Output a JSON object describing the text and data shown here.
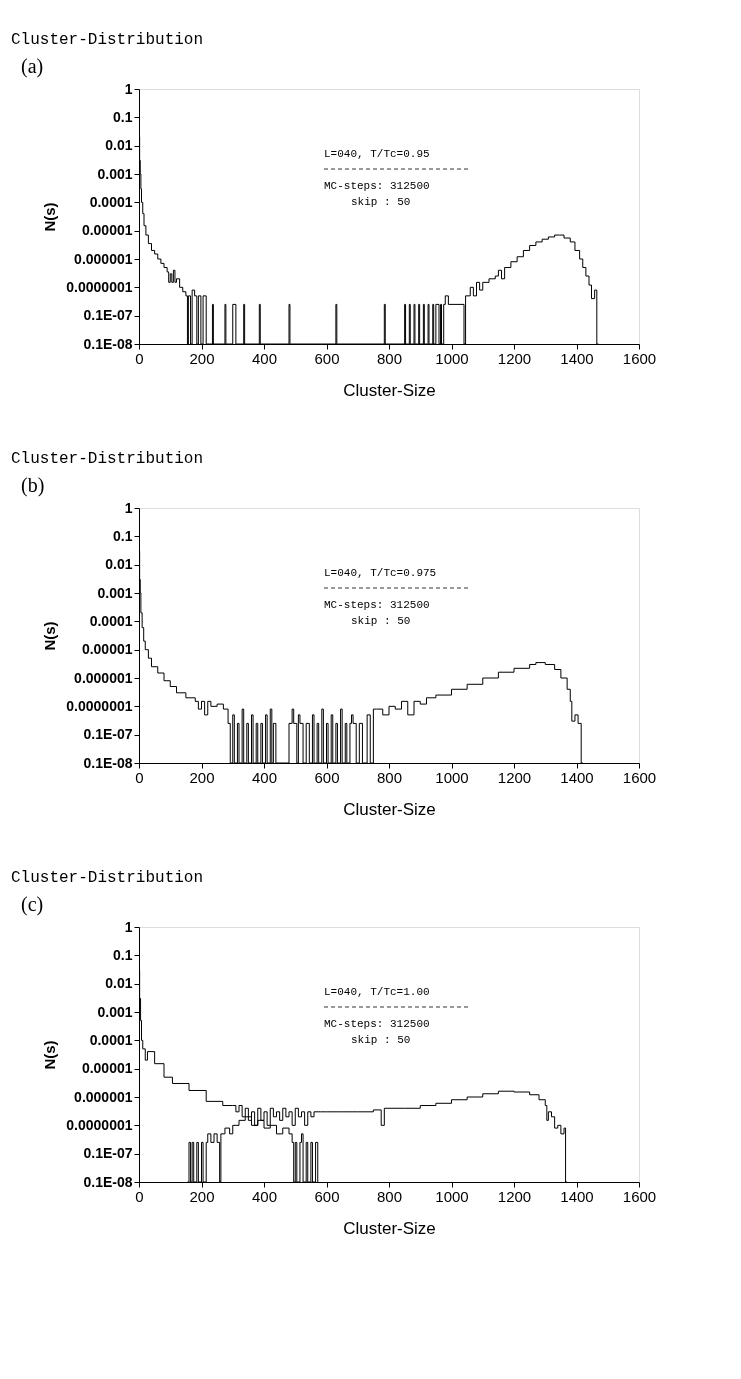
{
  "chart_data": [
    {
      "type": "step",
      "title": "Cluster-Distribution",
      "xlabel": "Cluster-Size",
      "ylabel": "N(s)",
      "log": "y",
      "grid": false,
      "legend": false,
      "annotations": [
        "(a)",
        "L=040,  T/Tc=0.95",
        "MC-steps: 312500",
        "skip : 50"
      ],
      "xlim": [
        0,
        1600
      ],
      "xticks": [
        0,
        200,
        400,
        600,
        800,
        1000,
        1200,
        1400,
        1600
      ],
      "ylim": [
        1e-09,
        1
      ],
      "yticks": [
        {
          "value": 1e-09,
          "label": "0.1E-08"
        },
        {
          "value": 1e-08,
          "label": "0.1E-07"
        },
        {
          "value": 1e-07,
          "label": "0.0000001"
        },
        {
          "value": 1e-06,
          "label": "0.000001"
        },
        {
          "value": 1e-05,
          "label": "0.00001"
        },
        {
          "value": 0.0001,
          "label": "0.0001"
        },
        {
          "value": 0.001,
          "label": "0.001"
        },
        {
          "value": 0.01,
          "label": "0.01"
        },
        {
          "value": 0.1,
          "label": "0.1"
        },
        {
          "value": 1,
          "label": "1"
        }
      ],
      "series": [
        {
          "color": "#000000",
          "x": [
            0,
            2,
            4,
            6,
            8,
            12,
            16,
            22,
            30,
            40,
            50,
            60,
            70,
            80,
            90,
            95,
            100,
            105,
            110,
            115,
            120,
            130,
            140,
            150,
            155,
            158,
            165,
            170,
            178,
            185,
            190,
            198,
            205,
            215,
            235,
            238,
            275,
            278,
            300,
            310,
            335,
            338,
            385,
            388,
            480,
            483,
            630,
            633,
            785,
            788,
            850,
            853,
            865,
            868,
            880,
            883,
            895,
            898,
            910,
            913,
            925,
            928,
            940,
            943,
            950,
            960,
            965,
            968,
            975,
            980,
            990,
            1040,
            1045,
            1060,
            1070,
            1080,
            1090,
            1100,
            1120,
            1140,
            1150,
            1160,
            1170,
            1190,
            1210,
            1230,
            1250,
            1270,
            1290,
            1310,
            1330,
            1345,
            1360,
            1380,
            1395,
            1410,
            1420,
            1430,
            1440,
            1448,
            1458,
            1465,
            1470
          ],
          "values": [
            0.02,
            0.003,
            0.001,
            0.0003,
            0.0001,
            4e-05,
            1.5e-05,
            7e-06,
            3.5e-06,
            2e-06,
            1.5e-06,
            1e-06,
            7e-07,
            5e-07,
            3.5e-07,
            1.5e-07,
            3e-07,
            1.5e-07,
            4e-07,
            1.5e-07,
            2e-07,
            1e-07,
            7e-08,
            5e-08,
            1e-09,
            5e-08,
            1e-09,
            8e-08,
            5e-08,
            1e-09,
            5e-08,
            1e-09,
            5e-08,
            1e-09,
            2.5e-08,
            1e-09,
            2.5e-08,
            1e-09,
            2.5e-08,
            1e-09,
            2.5e-08,
            1e-09,
            2.5e-08,
            1e-09,
            2.5e-08,
            1e-09,
            2.5e-08,
            1e-09,
            2.5e-08,
            1e-09,
            2.5e-08,
            1e-09,
            2.5e-08,
            1e-09,
            2.5e-08,
            1e-09,
            2.5e-08,
            1e-09,
            2.5e-08,
            1e-09,
            2.5e-08,
            1e-09,
            2.5e-08,
            1e-09,
            2.5e-08,
            1e-09,
            2.5e-08,
            1e-09,
            2.5e-08,
            5e-08,
            2.5e-08,
            1e-09,
            5e-08,
            1e-07,
            5e-08,
            1.5e-07,
            8e-08,
            1.5e-07,
            2e-07,
            2.5e-07,
            4e-07,
            2e-07,
            5e-07,
            8e-07,
            1.2e-06,
            2e-06,
            3e-06,
            4e-06,
            5e-06,
            6e-06,
            7e-06,
            7e-06,
            5.5e-06,
            4e-06,
            2e-06,
            1e-06,
            5e-07,
            2.5e-07,
            1.2e-07,
            4e-08,
            8e-08,
            1e-09,
            1e-09
          ]
        }
      ]
    },
    {
      "type": "step",
      "title": "Cluster-Distribution",
      "xlabel": "Cluster-Size",
      "ylabel": "N(s)",
      "log": "y",
      "grid": false,
      "legend": false,
      "annotations": [
        "(b)",
        "L=040,  T/Tc=0.975",
        "MC-steps: 312500",
        "skip : 50"
      ],
      "xlim": [
        0,
        1600
      ],
      "xticks": [
        0,
        200,
        400,
        600,
        800,
        1000,
        1200,
        1400,
        1600
      ],
      "ylim": [
        1e-09,
        1
      ],
      "yticks": [
        {
          "value": 1e-09,
          "label": "0.1E-08"
        },
        {
          "value": 1e-08,
          "label": "0.1E-07"
        },
        {
          "value": 1e-07,
          "label": "0.0000001"
        },
        {
          "value": 1e-06,
          "label": "0.000001"
        },
        {
          "value": 1e-05,
          "label": "0.00001"
        },
        {
          "value": 0.0001,
          "label": "0.0001"
        },
        {
          "value": 0.001,
          "label": "0.001"
        },
        {
          "value": 0.01,
          "label": "0.01"
        },
        {
          "value": 0.1,
          "label": "0.1"
        },
        {
          "value": 1,
          "label": "1"
        }
      ],
      "series": [
        {
          "color": "#000000",
          "x": [
            0,
            2,
            4,
            6,
            10,
            15,
            20,
            30,
            40,
            60,
            80,
            100,
            120,
            150,
            180,
            190,
            200,
            210,
            220,
            230,
            250,
            270,
            285,
            292,
            300,
            305,
            315,
            320,
            330,
            335,
            345,
            350,
            360,
            365,
            375,
            380,
            390,
            395,
            405,
            410,
            420,
            425,
            430,
            438,
            480,
            490,
            495,
            505,
            510,
            515,
            525,
            535,
            545,
            555,
            560,
            570,
            575,
            585,
            590,
            600,
            605,
            615,
            620,
            630,
            635,
            645,
            650,
            660,
            665,
            675,
            680,
            685,
            695,
            705,
            715,
            730,
            740,
            750,
            760,
            780,
            800,
            820,
            840,
            860,
            880,
            900,
            920,
            950,
            1000,
            1050,
            1100,
            1150,
            1200,
            1250,
            1270,
            1300,
            1330,
            1350,
            1370,
            1380,
            1385,
            1395,
            1405,
            1415,
            1420
          ],
          "values": [
            0.03,
            0.003,
            0.001,
            0.0002,
            6e-05,
            2e-05,
            1e-05,
            5e-06,
            2.5e-06,
            1.5e-06,
            8e-07,
            5e-07,
            3e-07,
            2e-07,
            1.5e-07,
            8e-08,
            1.5e-07,
            5e-08,
            1.5e-07,
            1e-07,
            1.2e-07,
            8e-08,
            2.5e-08,
            1e-09,
            5e-08,
            1e-09,
            2.5e-08,
            1e-09,
            8e-08,
            1e-09,
            2.5e-08,
            1e-09,
            5e-08,
            1e-09,
            2.5e-08,
            1e-09,
            2.5e-08,
            1e-09,
            5e-08,
            1e-09,
            8e-08,
            1e-09,
            2.5e-08,
            1e-09,
            2.5e-08,
            8e-08,
            2.5e-08,
            1e-09,
            5e-08,
            2.5e-08,
            1e-09,
            2.5e-08,
            1e-09,
            5e-08,
            1e-09,
            2.5e-08,
            1e-09,
            8e-08,
            1e-09,
            2.5e-08,
            1e-09,
            5e-08,
            1e-09,
            2.5e-08,
            1e-09,
            8e-08,
            1e-09,
            2.5e-08,
            1e-09,
            2.5e-08,
            5e-08,
            2.5e-08,
            1e-09,
            2.5e-08,
            1e-09,
            5e-08,
            1e-09,
            8e-08,
            8e-08,
            5e-08,
            1e-07,
            8e-08,
            1.5e-07,
            5e-08,
            1.5e-07,
            1.2e-07,
            2e-07,
            2.5e-07,
            4e-07,
            6e-07,
            1e-06,
            1.6e-06,
            2.2e-06,
            3e-06,
            3.5e-06,
            3e-06,
            2e-06,
            1e-06,
            4e-07,
            1.5e-07,
            3e-08,
            5e-08,
            2.5e-08,
            1e-09,
            1e-09
          ]
        }
      ]
    },
    {
      "type": "step",
      "title": "Cluster-Distribution",
      "xlabel": "Cluster-Size",
      "ylabel": "N(s)",
      "log": "y",
      "grid": false,
      "legend": false,
      "annotations": [
        "(c)",
        "L=040,  T/Tc=1.00",
        "MC-steps: 312500",
        "skip : 50"
      ],
      "xlim": [
        0,
        1600
      ],
      "xticks": [
        0,
        200,
        400,
        600,
        800,
        1000,
        1200,
        1400,
        1600
      ],
      "ylim": [
        1e-09,
        1
      ],
      "yticks": [
        {
          "value": 1e-09,
          "label": "0.1E-08"
        },
        {
          "value": 1e-08,
          "label": "0.1E-07"
        },
        {
          "value": 1e-07,
          "label": "0.0000001"
        },
        {
          "value": 1e-06,
          "label": "0.000001"
        },
        {
          "value": 1e-05,
          "label": "0.00001"
        },
        {
          "value": 0.0001,
          "label": "0.0001"
        },
        {
          "value": 0.001,
          "label": "0.001"
        },
        {
          "value": 0.01,
          "label": "0.01"
        },
        {
          "value": 0.1,
          "label": "0.1"
        },
        {
          "value": 1,
          "label": "1"
        }
      ],
      "series": [
        {
          "color": "#000000",
          "x": [
            0,
            2,
            5,
            8,
            12,
            20,
            27,
            50,
            80,
            107,
            160,
            215,
            268,
            300,
            310,
            320,
            330,
            340,
            350,
            360,
            370,
            380,
            390,
            400,
            410,
            420,
            430,
            440,
            450,
            460,
            470,
            480,
            490,
            500,
            510,
            520,
            530,
            540,
            550,
            560,
            580,
            600,
            650,
            700,
            750,
            775,
            785,
            800,
            850,
            900,
            950,
            1000,
            1050,
            1100,
            1150,
            1200,
            1250,
            1280,
            1300,
            1305,
            1310,
            1320,
            1330,
            1340,
            1350,
            1360,
            1365,
            1370
          ],
          "values": [
            0.03,
            0.003,
            0.0005,
            0.0001,
            5e-05,
            2e-05,
            4e-05,
            1.5e-05,
            5e-06,
            3e-06,
            1.7e-06,
            7e-07,
            5e-07,
            5e-07,
            3e-07,
            5e-07,
            2e-07,
            4e-07,
            1.5e-07,
            3e-07,
            1e-07,
            4e-07,
            1.5e-07,
            3e-07,
            1e-07,
            4e-07,
            2e-07,
            3e-07,
            1.5e-07,
            4e-07,
            2e-07,
            3e-07,
            1e-07,
            4e-07,
            2e-07,
            3e-07,
            1e-07,
            3e-07,
            2e-07,
            3e-07,
            3e-07,
            3e-07,
            3e-07,
            3e-07,
            3.5e-07,
            1e-07,
            4e-07,
            4e-07,
            4e-07,
            5e-07,
            6e-07,
            8e-07,
            1e-06,
            1.3e-06,
            1.6e-06,
            1.5e-06,
            1.2e-06,
            8e-07,
            5e-07,
            1.5e-07,
            3e-07,
            2e-07,
            8e-08,
            1e-07,
            5e-08,
            8e-08,
            1e-09,
            1e-09
          ]
        },
        {
          "color": "#000000",
          "x": [
            155,
            160,
            165,
            170,
            175,
            185,
            190,
            200,
            205,
            215,
            220,
            230,
            240,
            250,
            258,
            262,
            275,
            290,
            300,
            320,
            340,
            360,
            380,
            400,
            420,
            440,
            460,
            480,
            490,
            495,
            500,
            505,
            515,
            520,
            525,
            535,
            540,
            550,
            555,
            565,
            572
          ],
          "values": [
            1e-09,
            2.5e-08,
            1e-09,
            2.5e-08,
            1e-09,
            2.5e-08,
            1e-09,
            2.5e-08,
            1e-09,
            2.5e-08,
            5e-08,
            2.5e-08,
            5e-08,
            2.5e-08,
            1e-09,
            5e-08,
            8e-08,
            5e-08,
            1e-07,
            1.5e-07,
            2e-07,
            1e-07,
            1.5e-07,
            8e-08,
            1e-07,
            5e-08,
            8e-08,
            5e-08,
            2.5e-08,
            1e-09,
            2.5e-08,
            1e-09,
            2.5e-08,
            5e-08,
            1e-09,
            2.5e-08,
            1e-09,
            2.5e-08,
            1e-09,
            2.5e-08,
            1e-09
          ]
        }
      ]
    }
  ]
}
